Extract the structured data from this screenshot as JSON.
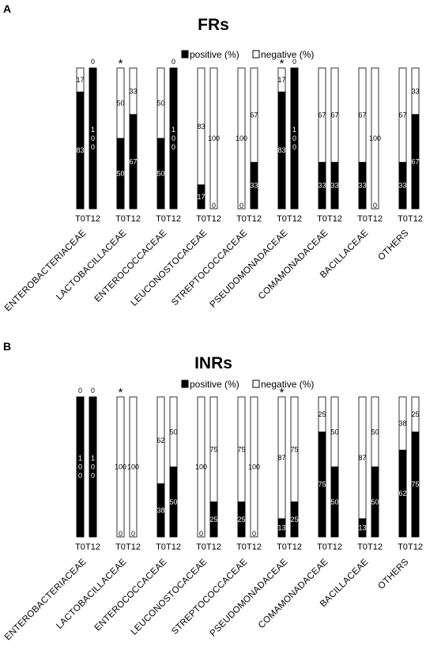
{
  "legend": {
    "positive": "positive (%)",
    "negative": "negative (%)"
  },
  "colors": {
    "positive": "#000000",
    "negative": "#ffffff",
    "border": "#000000"
  },
  "chart_data": [
    {
      "type": "bar",
      "stacked": true,
      "panel": "A",
      "title": "FRs",
      "categories": [
        "ENTEROBACTERIACEAE",
        "LACTOBACILLACEAE",
        "ENTEROCOCCACEAE",
        "LEUCONOSTOCACEAE",
        "STREPTOCOCCACEAE",
        "PSEUDOMONADACEAE",
        "COMAMONADACEAE",
        "BACILLACEAE",
        "OTHERS"
      ],
      "x_labels": [
        "T0",
        "T12"
      ],
      "series": [
        {
          "name": "positive (%)",
          "T0": [
            83,
            50,
            50,
            17,
            0,
            83,
            33,
            33,
            33
          ],
          "T12": [
            100,
            67,
            100,
            0,
            33,
            100,
            33,
            0,
            67
          ]
        },
        {
          "name": "negative (%)",
          "T0": [
            17,
            50,
            50,
            83,
            100,
            17,
            67,
            67,
            67
          ],
          "T12": [
            0,
            33,
            0,
            100,
            67,
            0,
            67,
            100,
            33
          ]
        }
      ],
      "significant": [
        "LACTOBACILLACEAE",
        "PSEUDOMONADACEAE"
      ],
      "significance_mark": "*",
      "ylim": [
        0,
        100
      ]
    },
    {
      "type": "bar",
      "stacked": true,
      "panel": "B",
      "title": "INRs",
      "categories": [
        "ENTEROBACTERIACEAE",
        "LACTOBACILLACEAE",
        "ENTEROCOCCACEAE",
        "LEUCONOSTOCACEAE",
        "STREPTOCOCCACEAE",
        "PSEUDOMONADACEAE",
        "COMAMONADACEAE",
        "BACILLACEAE",
        "OTHERS"
      ],
      "x_labels": [
        "T0",
        "T12"
      ],
      "series": [
        {
          "name": "positive (%)",
          "T0": [
            100,
            0,
            38,
            0,
            25,
            13,
            75,
            13,
            62
          ],
          "T12": [
            100,
            0,
            50,
            25,
            0,
            25,
            50,
            50,
            75
          ]
        },
        {
          "name": "negative (%)",
          "T0": [
            0,
            100,
            62,
            100,
            75,
            87,
            25,
            87,
            38
          ],
          "T12": [
            0,
            100,
            50,
            75,
            100,
            75,
            50,
            50,
            25
          ]
        }
      ],
      "significant": [
        "LACTOBACILLACEAE",
        "PSEUDOMONADACEAE"
      ],
      "significance_mark": "*",
      "ylim": [
        0,
        100
      ]
    }
  ]
}
